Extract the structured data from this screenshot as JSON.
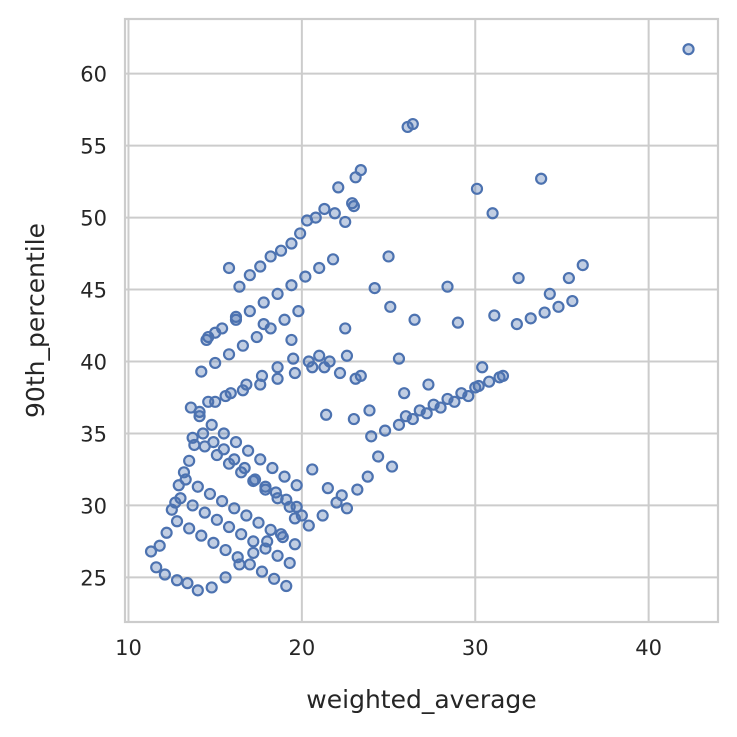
{
  "chart_data": {
    "type": "scatter",
    "title": "",
    "xlabel": "weighted_average",
    "ylabel": "90th_percentile",
    "xlim": [
      9.8,
      44.0
    ],
    "ylim": [
      21.9,
      63.8
    ],
    "x_ticks": [
      10,
      20,
      30,
      40
    ],
    "y_ticks": [
      25,
      30,
      35,
      40,
      45,
      50,
      55,
      60
    ],
    "grid": true,
    "legend": "none",
    "marker_color": "#4c72b0",
    "series": [
      {
        "x": [
          42.3,
          26.1,
          26.4,
          23.4,
          23.1,
          22.9,
          22.1,
          23.0,
          22.5,
          21.9,
          21.3,
          20.8,
          20.3,
          19.9,
          19.4,
          18.8,
          18.2,
          17.6,
          17.0,
          16.4,
          15.8,
          30.1,
          31.0,
          33.8,
          36.2,
          35.4,
          34.3,
          32.5,
          31.1,
          28.4,
          25.0,
          24.2,
          25.1,
          22.5,
          26.5,
          29.0,
          30.4,
          31.4,
          30.2,
          27.3,
          25.9,
          23.9,
          23.0,
          21.4,
          25.6,
          23.4,
          21.0,
          19.4,
          17.8,
          16.2,
          15.0,
          14.5,
          14.1,
          13.8,
          13.5,
          13.2,
          12.9,
          12.7,
          12.5,
          12.2,
          11.8,
          11.3,
          11.6,
          12.1,
          12.8,
          13.4,
          14.0,
          14.8,
          15.6,
          16.4,
          17.2,
          18.0,
          18.8,
          19.6,
          20.4,
          21.2,
          22.0,
          22.6,
          23.2,
          23.8,
          24.4,
          25.2,
          20.6,
          21.5,
          22.3,
          14.3,
          14.9,
          15.5,
          16.1,
          16.7,
          17.3,
          17.9,
          18.5,
          19.1,
          19.7,
          13.7,
          14.4,
          15.1,
          15.8,
          16.5,
          17.2,
          17.9,
          18.6,
          19.3,
          20.0,
          14.1,
          14.8,
          15.5,
          16.2,
          16.9,
          17.6,
          18.3,
          19.0,
          19.7,
          13.3,
          14.0,
          14.7,
          15.4,
          16.1,
          16.8,
          17.5,
          18.2,
          18.9,
          19.6,
          13.0,
          13.7,
          14.4,
          15.1,
          15.8,
          16.5,
          17.2,
          17.9,
          18.6,
          19.3,
          12.8,
          13.5,
          14.2,
          14.9,
          15.6,
          16.3,
          17.0,
          17.7,
          18.4,
          19.1,
          15.0,
          15.9,
          16.8,
          17.7,
          18.6,
          19.5,
          20.4,
          21.3,
          22.2,
          23.1,
          14.6,
          15.4,
          16.2,
          17.0,
          17.8,
          18.6,
          19.4,
          20.2,
          21.0,
          21.8,
          14.2,
          15.0,
          15.8,
          16.6,
          17.4,
          18.2,
          19.0,
          19.8,
          13.6,
          14.6,
          15.6,
          16.6,
          17.6,
          18.6,
          19.6,
          20.6,
          21.6,
          22.6,
          24.0,
          24.8,
          25.6,
          26.4,
          27.2,
          28.0,
          28.8,
          29.6,
          26.0,
          26.8,
          27.6,
          28.4,
          29.2,
          30.0,
          30.8,
          31.6,
          32.4,
          33.2,
          34.0,
          34.8,
          35.6
        ],
        "y": [
          61.7,
          56.3,
          56.5,
          53.3,
          52.8,
          51.0,
          52.1,
          50.8,
          49.7,
          50.3,
          50.6,
          50.0,
          49.8,
          48.9,
          48.2,
          47.7,
          47.3,
          46.6,
          46.0,
          45.2,
          46.5,
          52.0,
          50.3,
          52.7,
          46.7,
          45.8,
          44.7,
          45.8,
          43.2,
          45.2,
          47.3,
          45.1,
          43.8,
          42.3,
          42.9,
          42.7,
          39.6,
          38.9,
          38.3,
          38.4,
          37.8,
          36.6,
          36.0,
          36.3,
          40.2,
          39.0,
          40.4,
          41.5,
          42.6,
          43.1,
          42.0,
          41.5,
          36.5,
          34.2,
          33.1,
          32.3,
          31.4,
          30.2,
          29.7,
          28.1,
          27.2,
          26.8,
          25.7,
          25.2,
          24.8,
          24.6,
          24.1,
          24.3,
          25.0,
          25.9,
          26.7,
          27.5,
          28.0,
          29.1,
          28.6,
          29.3,
          30.2,
          29.8,
          31.1,
          32.0,
          33.4,
          32.7,
          32.5,
          31.2,
          30.7,
          35.0,
          34.4,
          33.9,
          33.2,
          32.6,
          31.8,
          31.3,
          30.9,
          30.4,
          29.9,
          34.7,
          34.1,
          33.5,
          32.9,
          32.3,
          31.7,
          31.1,
          30.5,
          29.9,
          29.3,
          36.2,
          35.6,
          35.0,
          34.4,
          33.8,
          33.2,
          32.6,
          32.0,
          31.4,
          31.8,
          31.3,
          30.8,
          30.3,
          29.8,
          29.3,
          28.8,
          28.3,
          27.8,
          27.3,
          30.5,
          30.0,
          29.5,
          29.0,
          28.5,
          28.0,
          27.5,
          27.0,
          26.5,
          26.0,
          28.9,
          28.4,
          27.9,
          27.4,
          26.9,
          26.4,
          25.9,
          25.4,
          24.9,
          24.4,
          37.2,
          37.8,
          38.4,
          39.0,
          39.6,
          40.2,
          40.0,
          39.6,
          39.2,
          38.8,
          41.7,
          42.3,
          42.9,
          43.5,
          44.1,
          44.7,
          45.3,
          45.9,
          46.5,
          47.1,
          39.3,
          39.9,
          40.5,
          41.1,
          41.7,
          42.3,
          42.9,
          43.5,
          36.8,
          37.2,
          37.6,
          38.0,
          38.4,
          38.8,
          39.2,
          39.6,
          40.0,
          40.4,
          34.8,
          35.2,
          35.6,
          36.0,
          36.4,
          36.8,
          37.2,
          37.6,
          36.2,
          36.6,
          37.0,
          37.4,
          37.8,
          38.2,
          38.6,
          39.0,
          42.6,
          43.0,
          43.4,
          43.8,
          44.2
        ]
      }
    ]
  }
}
